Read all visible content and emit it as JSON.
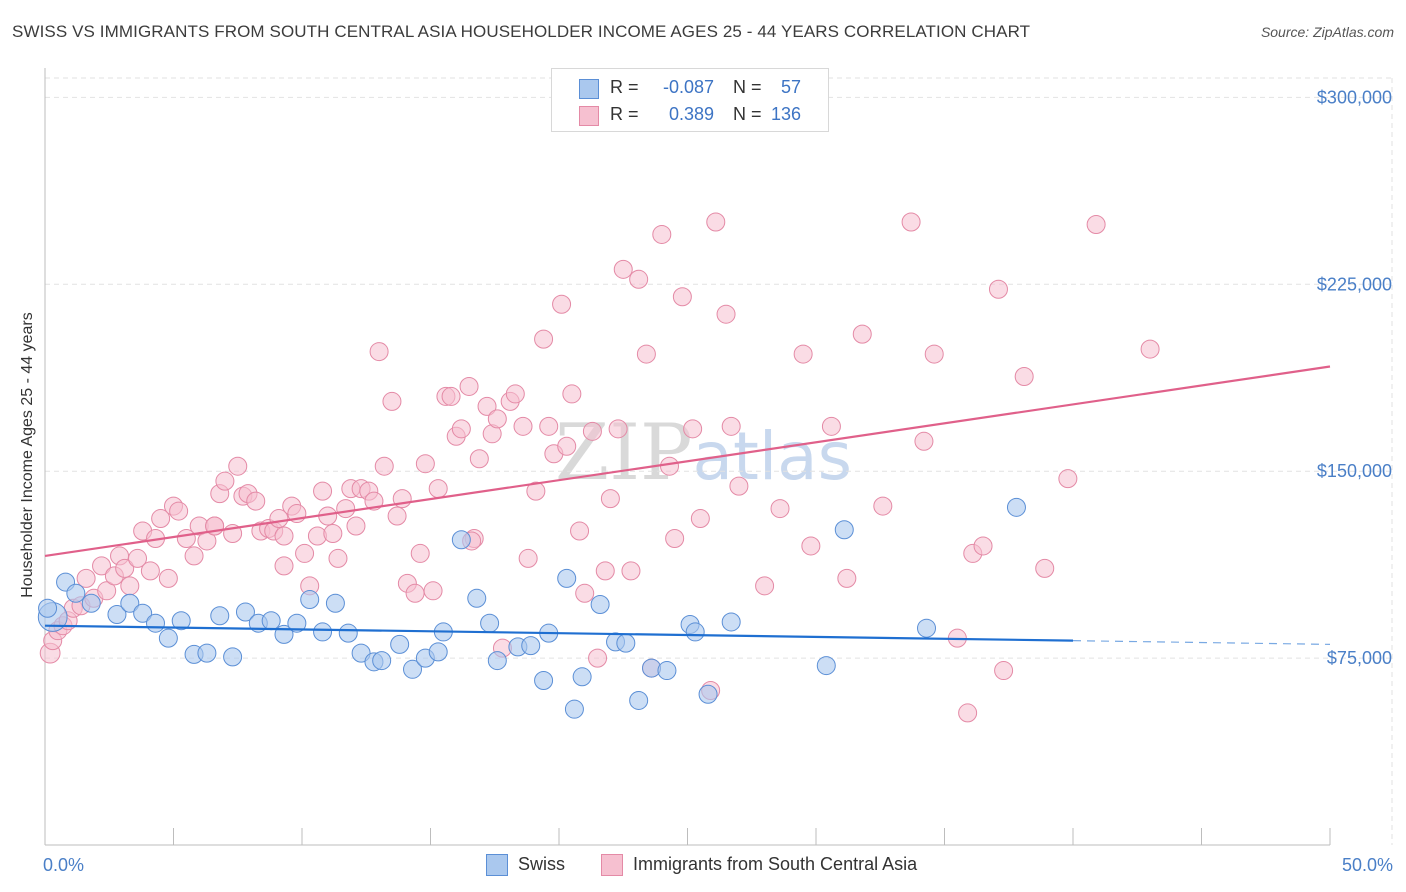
{
  "header": {
    "title": "SWISS VS IMMIGRANTS FROM SOUTH CENTRAL ASIA HOUSEHOLDER INCOME AGES 25 - 44 YEARS CORRELATION CHART",
    "source": "Source: ZipAtlas.com"
  },
  "legend": {
    "swiss": {
      "r_label": "R =",
      "r_value": "-0.087",
      "n_label": "N =",
      "n_value": "57"
    },
    "immigrants": {
      "r_label": "R =",
      "r_value": "0.389",
      "n_label": "N =",
      "n_value": "136"
    }
  },
  "bottom_legend": {
    "swiss": "Swiss",
    "immigrants": "Immigrants from South Central Asia"
  },
  "watermark": {
    "zip": "ZIP",
    "atlas": "atlas"
  },
  "colors": {
    "swiss_fill": "#aac8ee",
    "swiss_stroke": "#5b8fd6",
    "swiss_line": "#1f6fd1",
    "imm_fill": "#f6c0d0",
    "imm_stroke": "#e48aa6",
    "imm_line": "#e0608a",
    "tick_text": "#4a7fc7",
    "grid": "#e2e2e2"
  },
  "chart_data": {
    "type": "scatter",
    "title": "SWISS VS IMMIGRANTS FROM SOUTH CENTRAL ASIA HOUSEHOLDER INCOME AGES 25 - 44 YEARS CORRELATION CHART",
    "xlabel": "",
    "ylabel": "Householder Income Ages 25 - 44 years",
    "xlim": [
      0,
      50
    ],
    "ylim": [
      0,
      315000
    ],
    "x_tick_labels": [
      "0.0%",
      "50.0%"
    ],
    "y_ticks": [
      75000,
      150000,
      225000,
      300000
    ],
    "y_tick_labels": [
      "$75,000",
      "$150,000",
      "$225,000",
      "$300,000"
    ],
    "series": [
      {
        "name": "Swiss",
        "trend": {
          "x": [
            0,
            40
          ],
          "y": [
            88000,
            82000
          ],
          "dashed_to_x": 50,
          "dashed_to_y": 80500
        },
        "points": [
          [
            0.3,
            91500,
            1.6
          ],
          [
            0.8,
            105500,
            1
          ],
          [
            1.2,
            101000,
            1
          ],
          [
            1.8,
            97000,
            1
          ],
          [
            2.8,
            92500,
            1
          ],
          [
            3.3,
            97000,
            1
          ],
          [
            3.8,
            93000,
            1
          ],
          [
            4.3,
            89000,
            1
          ],
          [
            4.8,
            83000,
            1
          ],
          [
            5.3,
            90000,
            1
          ],
          [
            5.8,
            76500,
            1
          ],
          [
            6.3,
            77000,
            1
          ],
          [
            6.8,
            92000,
            1
          ],
          [
            7.3,
            75500,
            1
          ],
          [
            7.8,
            93500,
            1
          ],
          [
            8.3,
            89000,
            1
          ],
          [
            8.8,
            90000,
            1
          ],
          [
            9.3,
            84500,
            1
          ],
          [
            9.8,
            89000,
            1
          ],
          [
            10.3,
            98500,
            1
          ],
          [
            10.8,
            85500,
            1
          ],
          [
            11.3,
            97000,
            1
          ],
          [
            11.8,
            85000,
            1
          ],
          [
            12.3,
            77000,
            1
          ],
          [
            12.8,
            73500,
            1
          ],
          [
            13.1,
            74000,
            1
          ],
          [
            13.8,
            80500,
            1
          ],
          [
            14.3,
            70500,
            1
          ],
          [
            14.8,
            75000,
            1
          ],
          [
            15.3,
            77500,
            1
          ],
          [
            15.5,
            85500,
            1
          ],
          [
            16.2,
            122500,
            1
          ],
          [
            16.8,
            99000,
            1
          ],
          [
            17.3,
            89000,
            1
          ],
          [
            17.6,
            74000,
            1
          ],
          [
            18.4,
            79500,
            1
          ],
          [
            18.9,
            80000,
            1
          ],
          [
            19.4,
            66000,
            1
          ],
          [
            19.6,
            85000,
            1
          ],
          [
            20.3,
            107000,
            1
          ],
          [
            20.6,
            54500,
            1
          ],
          [
            20.9,
            67500,
            1
          ],
          [
            21.6,
            96500,
            1
          ],
          [
            22.2,
            81500,
            1
          ],
          [
            22.6,
            81000,
            1
          ],
          [
            23.1,
            58000,
            1
          ],
          [
            23.6,
            71000,
            1
          ],
          [
            24.2,
            70000,
            1
          ],
          [
            25.1,
            88500,
            1
          ],
          [
            25.3,
            85500,
            1
          ],
          [
            25.8,
            60500,
            1
          ],
          [
            26.7,
            89500,
            1
          ],
          [
            30.4,
            72000,
            1
          ],
          [
            31.1,
            126500,
            1
          ],
          [
            34.3,
            87000,
            1
          ],
          [
            37.8,
            135500,
            1
          ],
          [
            0.1,
            95000,
            1
          ]
        ]
      },
      {
        "name": "Immigrants from South Central Asia",
        "trend": {
          "x": [
            0,
            50
          ],
          "y": [
            116000,
            192000
          ]
        },
        "points": [
          [
            0.2,
            77000,
            1.1
          ],
          [
            0.3,
            82000,
            1
          ],
          [
            0.5,
            86000,
            1
          ],
          [
            0.7,
            88000,
            1
          ],
          [
            0.9,
            90000,
            1
          ],
          [
            1.1,
            95000,
            1
          ],
          [
            1.4,
            96000,
            1
          ],
          [
            1.6,
            107000,
            1
          ],
          [
            1.9,
            99000,
            1
          ],
          [
            2.2,
            112000,
            1
          ],
          [
            2.4,
            102000,
            1
          ],
          [
            2.7,
            108000,
            1
          ],
          [
            2.9,
            116000,
            1
          ],
          [
            3.1,
            111000,
            1
          ],
          [
            3.3,
            104000,
            1
          ],
          [
            3.6,
            115000,
            1
          ],
          [
            3.8,
            126000,
            1
          ],
          [
            4.1,
            110000,
            1
          ],
          [
            4.3,
            123000,
            1
          ],
          [
            4.5,
            131000,
            1
          ],
          [
            4.8,
            107000,
            1
          ],
          [
            5.0,
            136000,
            1
          ],
          [
            5.2,
            134000,
            1
          ],
          [
            5.5,
            123000,
            1
          ],
          [
            5.8,
            116000,
            1
          ],
          [
            6.0,
            128000,
            1
          ],
          [
            6.3,
            122000,
            1
          ],
          [
            6.6,
            128000,
            1
          ],
          [
            6.8,
            141000,
            1
          ],
          [
            7.0,
            146000,
            1
          ],
          [
            7.3,
            125000,
            1
          ],
          [
            7.5,
            152000,
            1
          ],
          [
            7.7,
            140000,
            1
          ],
          [
            7.9,
            141000,
            1
          ],
          [
            8.2,
            138000,
            1
          ],
          [
            8.4,
            126000,
            1
          ],
          [
            8.7,
            127000,
            1
          ],
          [
            8.9,
            126000,
            1
          ],
          [
            9.1,
            131000,
            1
          ],
          [
            9.3,
            112000,
            1
          ],
          [
            9.6,
            136000,
            1
          ],
          [
            9.8,
            133000,
            1
          ],
          [
            10.1,
            117000,
            1
          ],
          [
            10.3,
            104000,
            1
          ],
          [
            10.6,
            124000,
            1
          ],
          [
            10.8,
            142000,
            1
          ],
          [
            11.0,
            132000,
            1
          ],
          [
            11.2,
            125000,
            1
          ],
          [
            11.4,
            115000,
            1
          ],
          [
            11.7,
            135000,
            1
          ],
          [
            11.9,
            143000,
            1
          ],
          [
            12.1,
            128000,
            1
          ],
          [
            12.3,
            143000,
            1
          ],
          [
            12.6,
            142000,
            1
          ],
          [
            12.8,
            138000,
            1
          ],
          [
            13.0,
            198000,
            1
          ],
          [
            13.2,
            152000,
            1
          ],
          [
            13.5,
            178000,
            1
          ],
          [
            13.7,
            132000,
            1
          ],
          [
            13.9,
            139000,
            1
          ],
          [
            14.1,
            105000,
            1
          ],
          [
            14.4,
            101000,
            1
          ],
          [
            14.6,
            117000,
            1
          ],
          [
            14.8,
            153000,
            1
          ],
          [
            15.1,
            102000,
            1
          ],
          [
            15.3,
            143000,
            1
          ],
          [
            15.6,
            180000,
            1
          ],
          [
            15.8,
            180000,
            1
          ],
          [
            16.0,
            164000,
            1
          ],
          [
            16.2,
            167000,
            1
          ],
          [
            16.5,
            184000,
            1
          ],
          [
            16.7,
            123000,
            1
          ],
          [
            16.9,
            155000,
            1
          ],
          [
            17.2,
            176000,
            1
          ],
          [
            17.4,
            165000,
            1
          ],
          [
            17.6,
            171000,
            1
          ],
          [
            17.8,
            79000,
            1
          ],
          [
            18.1,
            178000,
            1
          ],
          [
            18.3,
            181000,
            1
          ],
          [
            18.6,
            168000,
            1
          ],
          [
            18.8,
            115000,
            1
          ],
          [
            19.1,
            142000,
            1
          ],
          [
            19.4,
            203000,
            1
          ],
          [
            19.6,
            168000,
            1
          ],
          [
            19.8,
            157000,
            1
          ],
          [
            20.1,
            217000,
            1
          ],
          [
            20.3,
            160000,
            1
          ],
          [
            20.5,
            181000,
            1
          ],
          [
            20.8,
            126000,
            1
          ],
          [
            21.0,
            101000,
            1
          ],
          [
            21.3,
            166000,
            1
          ],
          [
            21.5,
            75000,
            1
          ],
          [
            21.8,
            110000,
            1
          ],
          [
            22.0,
            139000,
            1
          ],
          [
            22.3,
            167000,
            1
          ],
          [
            22.5,
            231000,
            1
          ],
          [
            22.8,
            110000,
            1
          ],
          [
            23.1,
            227000,
            1
          ],
          [
            23.4,
            197000,
            1
          ],
          [
            23.6,
            71000,
            1
          ],
          [
            24.0,
            245000,
            1
          ],
          [
            24.3,
            152000,
            1
          ],
          [
            24.5,
            123000,
            1
          ],
          [
            24.8,
            220000,
            1
          ],
          [
            25.2,
            167000,
            1
          ],
          [
            25.5,
            131000,
            1
          ],
          [
            25.9,
            62000,
            1
          ],
          [
            26.1,
            250000,
            1
          ],
          [
            26.5,
            213000,
            1
          ],
          [
            26.7,
            168000,
            1
          ],
          [
            27.0,
            144000,
            1
          ],
          [
            28.0,
            104000,
            1
          ],
          [
            28.6,
            135000,
            1
          ],
          [
            29.5,
            197000,
            1
          ],
          [
            29.8,
            120000,
            1
          ],
          [
            30.6,
            168000,
            1
          ],
          [
            31.2,
            107000,
            1
          ],
          [
            31.8,
            205000,
            1
          ],
          [
            32.6,
            136000,
            1
          ],
          [
            33.7,
            250000,
            1
          ],
          [
            34.2,
            162000,
            1
          ],
          [
            34.6,
            197000,
            1
          ],
          [
            35.5,
            83000,
            1
          ],
          [
            35.9,
            53000,
            1
          ],
          [
            36.1,
            117000,
            1
          ],
          [
            36.5,
            120000,
            1
          ],
          [
            37.1,
            223000,
            1
          ],
          [
            37.3,
            70000,
            1
          ],
          [
            38.1,
            188000,
            1
          ],
          [
            38.9,
            111000,
            1
          ],
          [
            39.8,
            147000,
            1
          ],
          [
            40.9,
            249000,
            1
          ],
          [
            43.0,
            199000,
            1
          ],
          [
            16.6,
            122000,
            1
          ],
          [
            9.3,
            124000,
            1
          ],
          [
            6.6,
            128000,
            1
          ]
        ]
      }
    ]
  }
}
